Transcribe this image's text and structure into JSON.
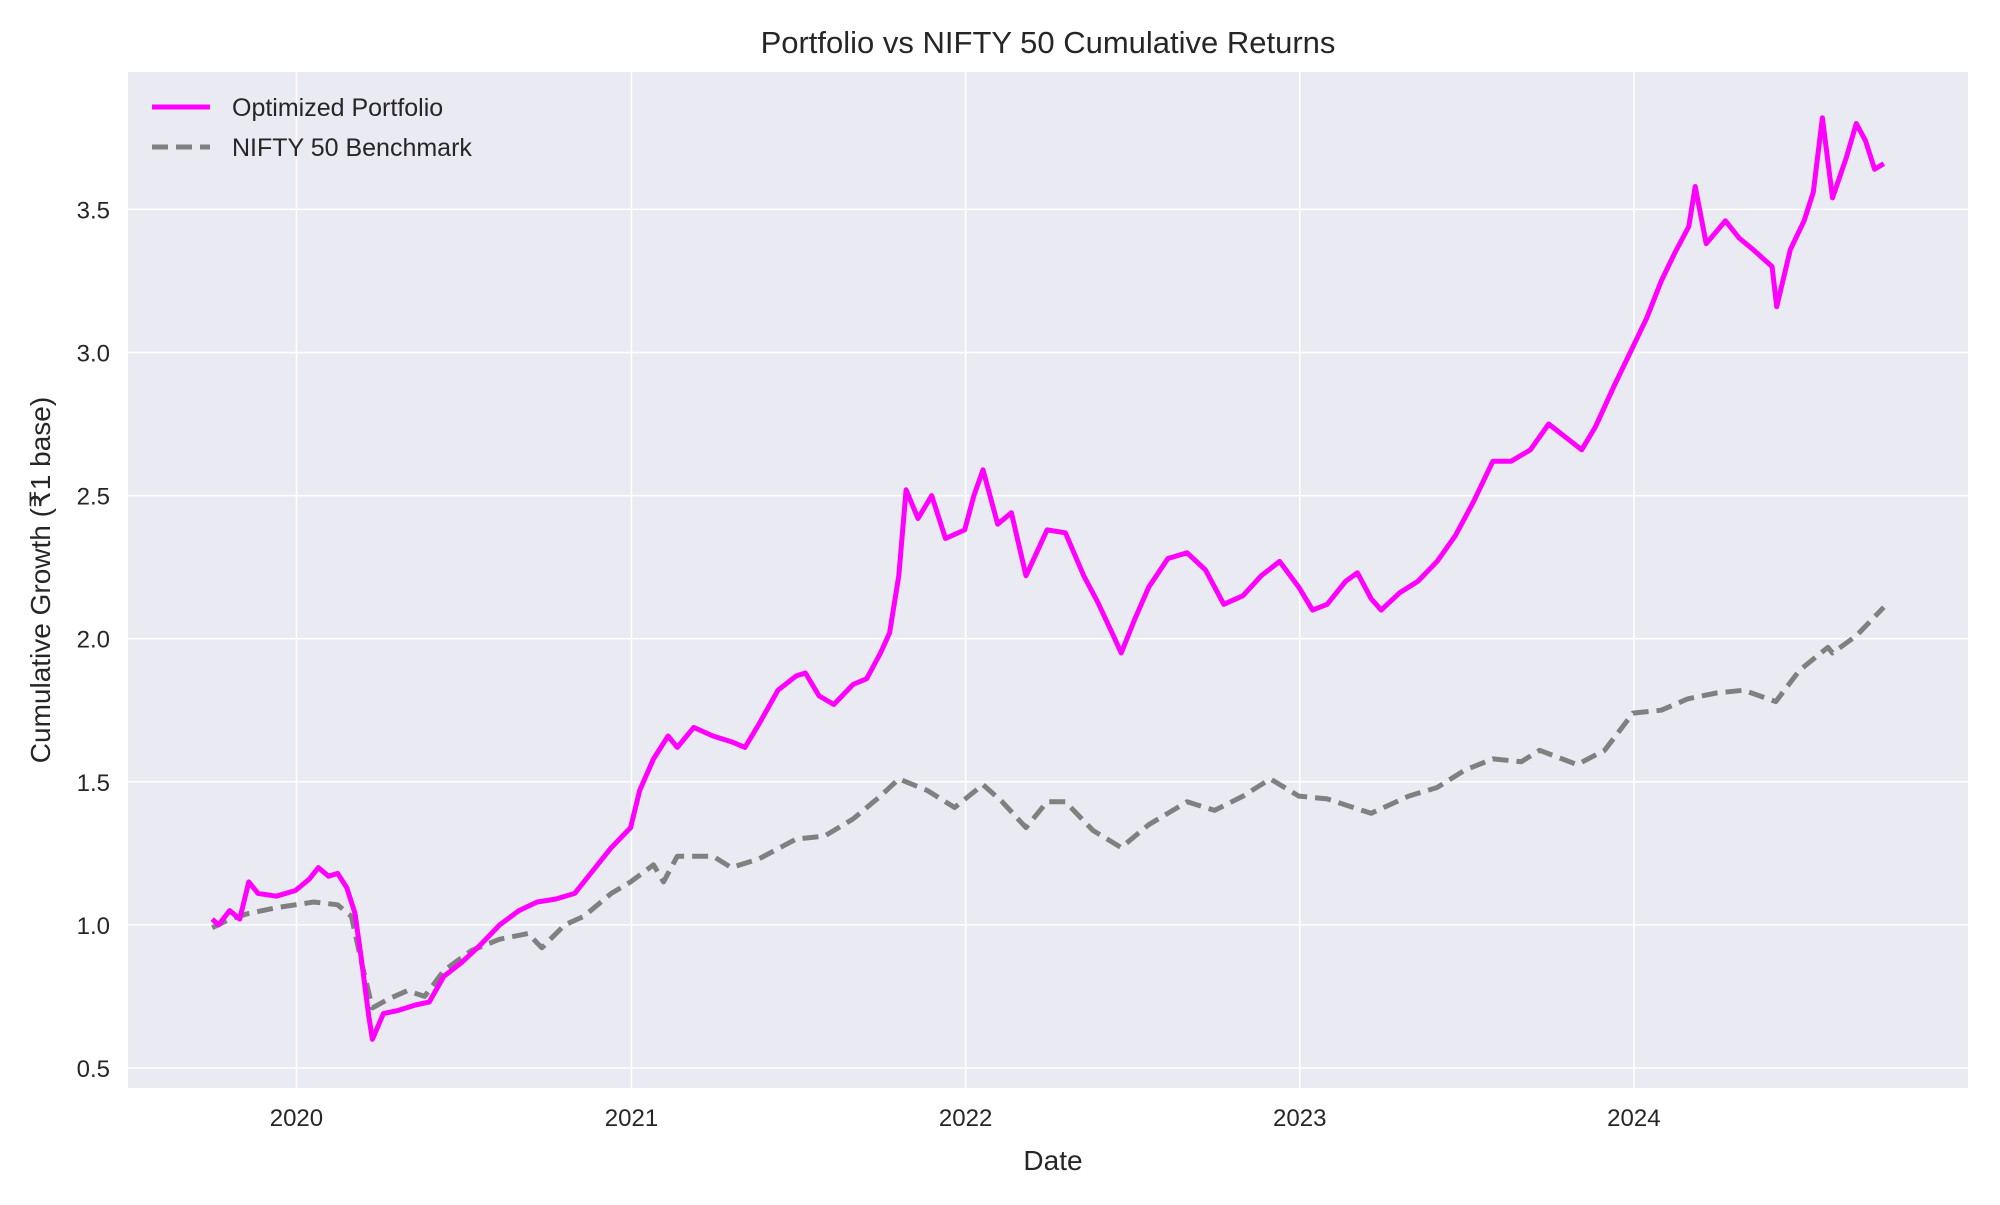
{
  "chart_data": {
    "type": "line",
    "title": "Portfolio vs NIFTY 50 Cumulative Returns",
    "xlabel": "Date",
    "ylabel": "Cumulative Growth (₹1 base)",
    "xlim": [
      "2019-07-01",
      "2024-12-31"
    ],
    "ylim": [
      0.43,
      3.98
    ],
    "x_ticks": [
      "2020",
      "2021",
      "2022",
      "2023",
      "2024"
    ],
    "y_ticks": [
      "0.5",
      "1.0",
      "1.5",
      "2.0",
      "2.5",
      "3.0",
      "3.5"
    ],
    "grid": true,
    "legend_position": "top-left",
    "series": [
      {
        "name": "Optimized Portfolio",
        "color": "#ff00ff",
        "style": "solid",
        "points": [
          [
            "2019-10-01",
            1.02
          ],
          [
            "2019-10-08",
            1.0
          ],
          [
            "2019-10-20",
            1.05
          ],
          [
            "2019-10-31",
            1.02
          ],
          [
            "2019-11-10",
            1.15
          ],
          [
            "2019-11-20",
            1.11
          ],
          [
            "2019-12-10",
            1.1
          ],
          [
            "2019-12-31",
            1.12
          ],
          [
            "2020-01-15",
            1.16
          ],
          [
            "2020-01-25",
            1.2
          ],
          [
            "2020-02-05",
            1.17
          ],
          [
            "2020-02-15",
            1.18
          ],
          [
            "2020-02-25",
            1.13
          ],
          [
            "2020-03-05",
            1.04
          ],
          [
            "2020-03-12",
            0.88
          ],
          [
            "2020-03-20",
            0.68
          ],
          [
            "2020-03-24",
            0.6
          ],
          [
            "2020-04-05",
            0.69
          ],
          [
            "2020-04-20",
            0.7
          ],
          [
            "2020-05-10",
            0.72
          ],
          [
            "2020-05-25",
            0.73
          ],
          [
            "2020-06-10",
            0.82
          ],
          [
            "2020-06-30",
            0.87
          ],
          [
            "2020-07-20",
            0.93
          ],
          [
            "2020-08-10",
            1.0
          ],
          [
            "2020-08-31",
            1.05
          ],
          [
            "2020-09-20",
            1.08
          ],
          [
            "2020-10-10",
            1.09
          ],
          [
            "2020-10-31",
            1.11
          ],
          [
            "2020-11-20",
            1.19
          ],
          [
            "2020-12-10",
            1.27
          ],
          [
            "2020-12-31",
            1.34
          ],
          [
            "2021-01-10",
            1.47
          ],
          [
            "2021-01-25",
            1.58
          ],
          [
            "2021-02-10",
            1.66
          ],
          [
            "2021-02-20",
            1.62
          ],
          [
            "2021-03-10",
            1.69
          ],
          [
            "2021-03-31",
            1.66
          ],
          [
            "2021-04-20",
            1.64
          ],
          [
            "2021-05-05",
            1.62
          ],
          [
            "2021-05-20",
            1.7
          ],
          [
            "2021-06-10",
            1.82
          ],
          [
            "2021-06-30",
            1.87
          ],
          [
            "2021-07-10",
            1.88
          ],
          [
            "2021-07-25",
            1.8
          ],
          [
            "2021-08-10",
            1.77
          ],
          [
            "2021-08-31",
            1.84
          ],
          [
            "2021-09-15",
            1.86
          ],
          [
            "2021-09-30",
            1.95
          ],
          [
            "2021-10-10",
            2.02
          ],
          [
            "2021-10-20",
            2.22
          ],
          [
            "2021-10-28",
            2.52
          ],
          [
            "2021-11-10",
            2.42
          ],
          [
            "2021-11-25",
            2.5
          ],
          [
            "2021-12-10",
            2.35
          ],
          [
            "2021-12-31",
            2.38
          ],
          [
            "2022-01-10",
            2.5
          ],
          [
            "2022-01-20",
            2.59
          ],
          [
            "2022-02-05",
            2.4
          ],
          [
            "2022-02-20",
            2.44
          ],
          [
            "2022-03-08",
            2.22
          ],
          [
            "2022-03-31",
            2.38
          ],
          [
            "2022-04-20",
            2.37
          ],
          [
            "2022-05-10",
            2.22
          ],
          [
            "2022-05-25",
            2.13
          ],
          [
            "2022-06-10",
            2.02
          ],
          [
            "2022-06-20",
            1.95
          ],
          [
            "2022-07-05",
            2.07
          ],
          [
            "2022-07-20",
            2.18
          ],
          [
            "2022-08-10",
            2.28
          ],
          [
            "2022-08-31",
            2.3
          ],
          [
            "2022-09-20",
            2.24
          ],
          [
            "2022-10-10",
            2.12
          ],
          [
            "2022-10-31",
            2.15
          ],
          [
            "2022-11-20",
            2.22
          ],
          [
            "2022-12-10",
            2.27
          ],
          [
            "2022-12-31",
            2.18
          ],
          [
            "2023-01-15",
            2.1
          ],
          [
            "2023-01-31",
            2.12
          ],
          [
            "2023-02-20",
            2.2
          ],
          [
            "2023-03-05",
            2.23
          ],
          [
            "2023-03-20",
            2.14
          ],
          [
            "2023-03-31",
            2.1
          ],
          [
            "2023-04-20",
            2.16
          ],
          [
            "2023-05-10",
            2.2
          ],
          [
            "2023-05-31",
            2.27
          ],
          [
            "2023-06-20",
            2.36
          ],
          [
            "2023-07-10",
            2.48
          ],
          [
            "2023-07-31",
            2.62
          ],
          [
            "2023-08-20",
            2.62
          ],
          [
            "2023-09-10",
            2.66
          ],
          [
            "2023-09-30",
            2.75
          ],
          [
            "2023-10-20",
            2.7
          ],
          [
            "2023-11-05",
            2.66
          ],
          [
            "2023-11-20",
            2.74
          ],
          [
            "2023-12-10",
            2.88
          ],
          [
            "2023-12-31",
            3.02
          ],
          [
            "2024-01-15",
            3.12
          ],
          [
            "2024-01-31",
            3.25
          ],
          [
            "2024-02-15",
            3.35
          ],
          [
            "2024-03-01",
            3.44
          ],
          [
            "2024-03-08",
            3.58
          ],
          [
            "2024-03-20",
            3.38
          ],
          [
            "2024-04-10",
            3.46
          ],
          [
            "2024-04-25",
            3.4
          ],
          [
            "2024-05-10",
            3.36
          ],
          [
            "2024-05-31",
            3.3
          ],
          [
            "2024-06-05",
            3.16
          ],
          [
            "2024-06-20",
            3.36
          ],
          [
            "2024-07-05",
            3.46
          ],
          [
            "2024-07-15",
            3.56
          ],
          [
            "2024-07-25",
            3.82
          ],
          [
            "2024-08-05",
            3.54
          ],
          [
            "2024-08-20",
            3.68
          ],
          [
            "2024-08-31",
            3.8
          ],
          [
            "2024-09-10",
            3.74
          ],
          [
            "2024-09-20",
            3.64
          ],
          [
            "2024-09-30",
            3.66
          ]
        ]
      },
      {
        "name": "NIFTY 50 Benchmark",
        "color": "#808080",
        "style": "dashed",
        "points": [
          [
            "2019-10-01",
            0.99
          ],
          [
            "2019-10-20",
            1.02
          ],
          [
            "2019-11-10",
            1.04
          ],
          [
            "2019-12-10",
            1.06
          ],
          [
            "2019-12-31",
            1.07
          ],
          [
            "2020-01-20",
            1.08
          ],
          [
            "2020-02-15",
            1.07
          ],
          [
            "2020-03-01",
            1.03
          ],
          [
            "2020-03-12",
            0.87
          ],
          [
            "2020-03-24",
            0.71
          ],
          [
            "2020-04-10",
            0.74
          ],
          [
            "2020-05-01",
            0.77
          ],
          [
            "2020-05-20",
            0.75
          ],
          [
            "2020-06-10",
            0.84
          ],
          [
            "2020-07-10",
            0.91
          ],
          [
            "2020-08-10",
            0.95
          ],
          [
            "2020-09-10",
            0.97
          ],
          [
            "2020-09-25",
            0.92
          ],
          [
            "2020-10-20",
            1.0
          ],
          [
            "2020-11-10",
            1.03
          ],
          [
            "2020-12-10",
            1.11
          ],
          [
            "2020-12-31",
            1.15
          ],
          [
            "2021-01-25",
            1.21
          ],
          [
            "2021-02-05",
            1.15
          ],
          [
            "2021-02-20",
            1.24
          ],
          [
            "2021-03-31",
            1.24
          ],
          [
            "2021-04-20",
            1.2
          ],
          [
            "2021-05-20",
            1.23
          ],
          [
            "2021-06-30",
            1.3
          ],
          [
            "2021-07-31",
            1.31
          ],
          [
            "2021-08-31",
            1.37
          ],
          [
            "2021-09-30",
            1.45
          ],
          [
            "2021-10-20",
            1.51
          ],
          [
            "2021-11-20",
            1.47
          ],
          [
            "2021-12-20",
            1.41
          ],
          [
            "2022-01-20",
            1.49
          ],
          [
            "2022-02-10",
            1.43
          ],
          [
            "2022-03-08",
            1.34
          ],
          [
            "2022-03-31",
            1.43
          ],
          [
            "2022-04-20",
            1.43
          ],
          [
            "2022-05-20",
            1.33
          ],
          [
            "2022-06-20",
            1.27
          ],
          [
            "2022-07-20",
            1.35
          ],
          [
            "2022-08-31",
            1.43
          ],
          [
            "2022-09-30",
            1.4
          ],
          [
            "2022-10-31",
            1.45
          ],
          [
            "2022-11-30",
            1.51
          ],
          [
            "2022-12-31",
            1.45
          ],
          [
            "2023-01-31",
            1.44
          ],
          [
            "2023-03-20",
            1.39
          ],
          [
            "2023-04-30",
            1.45
          ],
          [
            "2023-05-31",
            1.48
          ],
          [
            "2023-06-30",
            1.54
          ],
          [
            "2023-07-31",
            1.58
          ],
          [
            "2023-08-31",
            1.57
          ],
          [
            "2023-09-20",
            1.61
          ],
          [
            "2023-10-31",
            1.56
          ],
          [
            "2023-11-30",
            1.61
          ],
          [
            "2023-12-31",
            1.74
          ],
          [
            "2024-01-31",
            1.75
          ],
          [
            "2024-02-29",
            1.79
          ],
          [
            "2024-03-31",
            1.81
          ],
          [
            "2024-04-30",
            1.82
          ],
          [
            "2024-06-04",
            1.78
          ],
          [
            "2024-06-30",
            1.89
          ],
          [
            "2024-07-31",
            1.97
          ],
          [
            "2024-08-05",
            1.95
          ],
          [
            "2024-08-31",
            2.01
          ],
          [
            "2024-09-30",
            2.11
          ]
        ]
      }
    ]
  }
}
